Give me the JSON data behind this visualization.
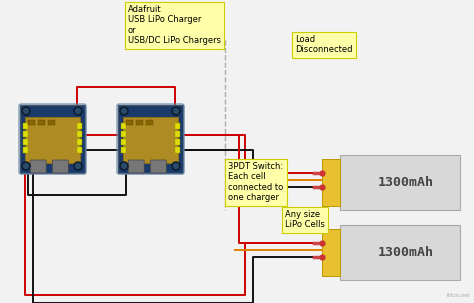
{
  "bg_color": "#f2f2f2",
  "label_charger": "Adafruit\nUSB LiPo Charger\nor\nUSB/DC LiPo Chargers",
  "label_load": "Load\nDisconnected",
  "label_switch": "3PDT Switch:\nEach cell\nconnected to\none charger",
  "label_lipo": "Any size\nLiPo Cells",
  "label_mah1": "1300mAh",
  "label_mah2": "1300mAh",
  "charger_bg": "#1a3a6b",
  "charger_detail": "#b89020",
  "battery_bg": "#d8d8d8",
  "battery_tab": "#e8c030",
  "note_bg": "#ffffaa",
  "wire_red": "#cc0000",
  "wire_black": "#111111",
  "wire_orange": "#e08000",
  "watermark": "fritzis.net"
}
